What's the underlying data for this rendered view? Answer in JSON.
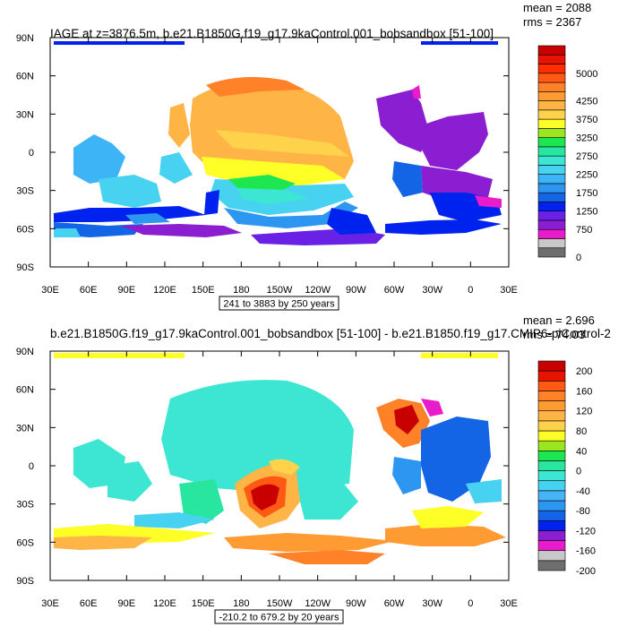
{
  "chart_data": [
    {
      "type": "heatmap",
      "title": "IAGE at z=3876.5m, b.e21.B1850G.f19_g17.9kaControl.001_bobsandbox [51-100]",
      "stats": {
        "mean": "mean = 2088",
        "rms": "rms = 2367"
      },
      "range_label": "241 to 3883 by 250 years",
      "xlabels": [
        "30E",
        "60E",
        "90E",
        "120E",
        "150E",
        "180",
        "150W",
        "120W",
        "90W",
        "60W",
        "30W",
        "0",
        "30E"
      ],
      "ylabels": [
        "90N",
        "60N",
        "30N",
        "0",
        "30S",
        "60S",
        "90S"
      ],
      "colorbar": {
        "colors": [
          "#6e6e6e",
          "#c8c8c8",
          "#e81ccb",
          "#8c1ed2",
          "#6a21e6",
          "#0022ee",
          "#1464e6",
          "#2d96f0",
          "#3cb4f5",
          "#46d2f0",
          "#3ce6d2",
          "#28e6a0",
          "#1ee650",
          "#9be61e",
          "#ffff28",
          "#ffd24b",
          "#ffb446",
          "#ff9b32",
          "#ff8228",
          "#ff5a14",
          "#ff2d00",
          "#e61400",
          "#c80000"
        ],
        "labels": [
          {
            "pos": 0,
            "text": "0"
          },
          {
            "pos": 3,
            "text": "750"
          },
          {
            "pos": 5,
            "text": "1250"
          },
          {
            "pos": 7,
            "text": "1750"
          },
          {
            "pos": 9,
            "text": "2250"
          },
          {
            "pos": 11,
            "text": "2750"
          },
          {
            "pos": 13,
            "text": "3250"
          },
          {
            "pos": 15,
            "text": "3750"
          },
          {
            "pos": 17,
            "text": "4250"
          },
          {
            "pos": 20,
            "text": "5000"
          }
        ]
      }
    },
    {
      "type": "heatmap",
      "title": "b.e21.B1850G.f19_g17.9kaControl.001_bobsandbox [51-100] - b.e21.B1850.f19_g17.CMIP6-piControl-2",
      "stats": {
        "mean": "mean = 2.696",
        "rms": "rms = 74.03"
      },
      "range_label": "-210.2 to 679.2 by 20 years",
      "xlabels": [
        "30E",
        "60E",
        "90E",
        "120E",
        "150E",
        "180",
        "150W",
        "120W",
        "90W",
        "60W",
        "30W",
        "0",
        "30E"
      ],
      "ylabels": [
        "90N",
        "60N",
        "30N",
        "0",
        "30S",
        "60S",
        "90S"
      ],
      "colorbar": {
        "colors": [
          "#6e6e6e",
          "#c8c8c8",
          "#e81ccb",
          "#8c1ed2",
          "#0022ee",
          "#1464e6",
          "#2d96f0",
          "#46b4f5",
          "#46d2f0",
          "#3ce6d2",
          "#28e6a0",
          "#1ee650",
          "#9be61e",
          "#ffff28",
          "#ffd24b",
          "#ffb446",
          "#ff9b32",
          "#ff8228",
          "#ff5a14",
          "#e61400",
          "#c80000"
        ],
        "labels": [
          {
            "pos": 0,
            "text": "-200"
          },
          {
            "pos": 2,
            "text": "-160"
          },
          {
            "pos": 4,
            "text": "-120"
          },
          {
            "pos": 6,
            "text": "-80"
          },
          {
            "pos": 8,
            "text": "-40"
          },
          {
            "pos": 10,
            "text": "0"
          },
          {
            "pos": 12,
            "text": "40"
          },
          {
            "pos": 14,
            "text": "80"
          },
          {
            "pos": 16,
            "text": "120"
          },
          {
            "pos": 18,
            "text": "160"
          },
          {
            "pos": 20,
            "text": "200"
          }
        ]
      }
    }
  ]
}
